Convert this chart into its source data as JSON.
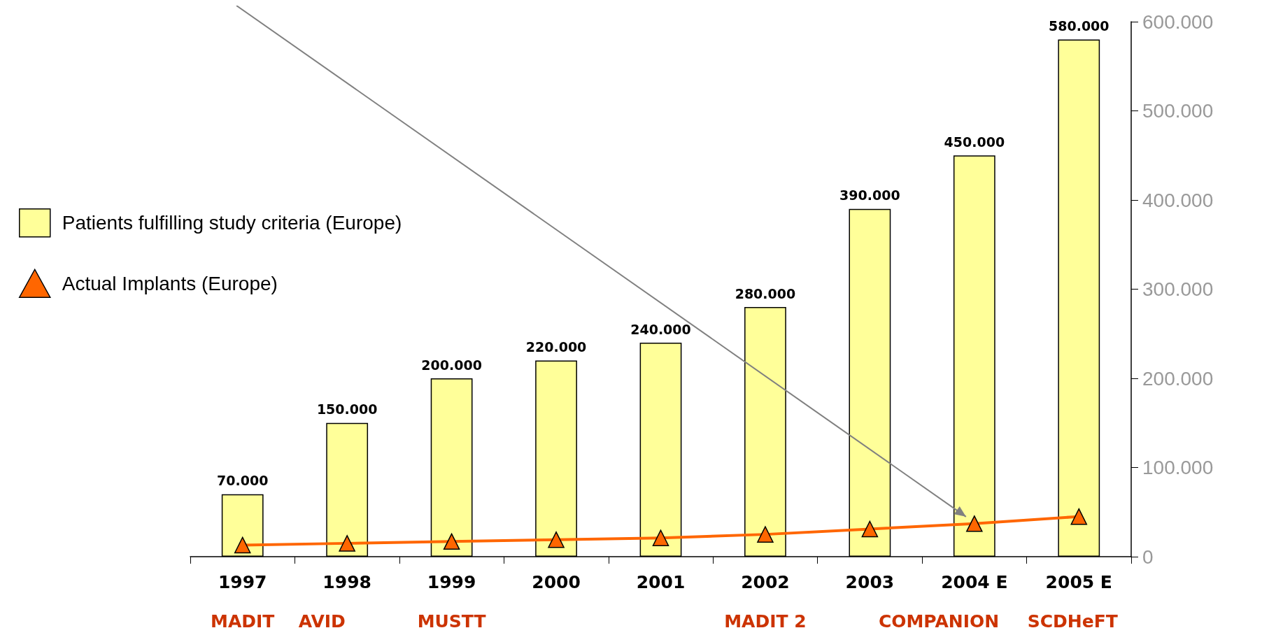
{
  "chart_data": {
    "type": "bar",
    "categories": [
      "1997",
      "1998",
      "1999",
      "2000",
      "2001",
      "2002",
      "2003",
      "2004 E",
      "2005 E"
    ],
    "series": [
      {
        "name": "Patients fulfilling study criteria (Europe)",
        "color": "#ffff99",
        "values": [
          70000,
          150000,
          200000,
          220000,
          240000,
          280000,
          390000,
          450000,
          580000
        ],
        "value_labels": [
          "70.000",
          "150.000",
          "200.000",
          "220.000",
          "240.000",
          "280.000",
          "390.000",
          "450.000",
          "580.000"
        ]
      },
      {
        "name": "Actual Implants (Europe)",
        "type": "line",
        "color": "#ff6600",
        "marker": "triangle",
        "values": [
          13000,
          15000,
          17000,
          19000,
          21000,
          25000,
          31000,
          37000,
          45000
        ]
      }
    ],
    "ylim": [
      0,
      600000
    ],
    "yticks": [
      0,
      {
        "value": 100000,
        "label": "100.000"
      },
      {
        "value": 200000,
        "label": "200.000"
      },
      {
        "value": 300000,
        "label": "300.000"
      },
      {
        "value": 400000,
        "label": "400.000"
      },
      {
        "value": 500000,
        "label": "500.000"
      },
      {
        "value": 600000,
        "label": "600.000"
      }
    ],
    "grid": false,
    "legend": "left",
    "annotations": [
      "MADIT",
      "AVID",
      "MUSTT",
      "MADIT 2",
      "COMPANION",
      "SCDHeFT"
    ]
  }
}
